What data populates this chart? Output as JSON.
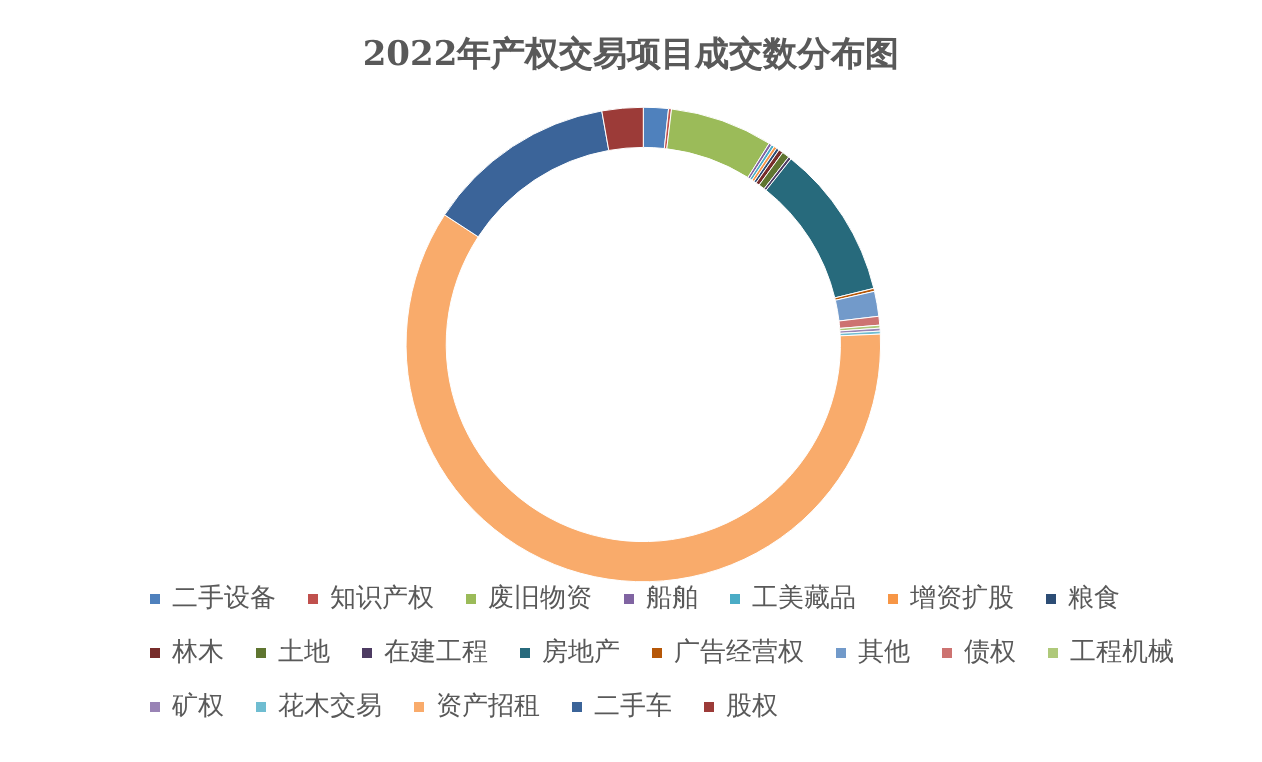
{
  "chart_data": {
    "type": "donut",
    "title": "2022年产权交易项目成交数分布图",
    "categories": [
      "二手设备",
      "知识产权",
      "废旧物资",
      "船舶",
      "工美藏品",
      "增资扩股",
      "粮食",
      "林木",
      "土地",
      "在建工程",
      "房地产",
      "广告经营权",
      "其他",
      "债权",
      "工程机械",
      "矿权",
      "花木交易",
      "资产招租",
      "二手车",
      "股权"
    ],
    "values": [
      1.7,
      0.2,
      7.0,
      0.2,
      0.2,
      0.2,
      0.2,
      0.3,
      0.5,
      0.2,
      10.5,
      0.2,
      1.7,
      0.6,
      0.2,
      0.2,
      0.2,
      59.9,
      13.0,
      2.8
    ],
    "colors": [
      "#4f81bd",
      "#c0504d",
      "#9bbb59",
      "#8064a2",
      "#4bacc6",
      "#f79646",
      "#2c4d75",
      "#772c2a",
      "#5f7530",
      "#4d3b62",
      "#276a7c",
      "#b65708",
      "#729aca",
      "#cd7371",
      "#afc97a",
      "#9983b5",
      "#6fbdd1",
      "#f9ab6b",
      "#3b6499",
      "#9c3b38"
    ],
    "legend": "bottom"
  }
}
